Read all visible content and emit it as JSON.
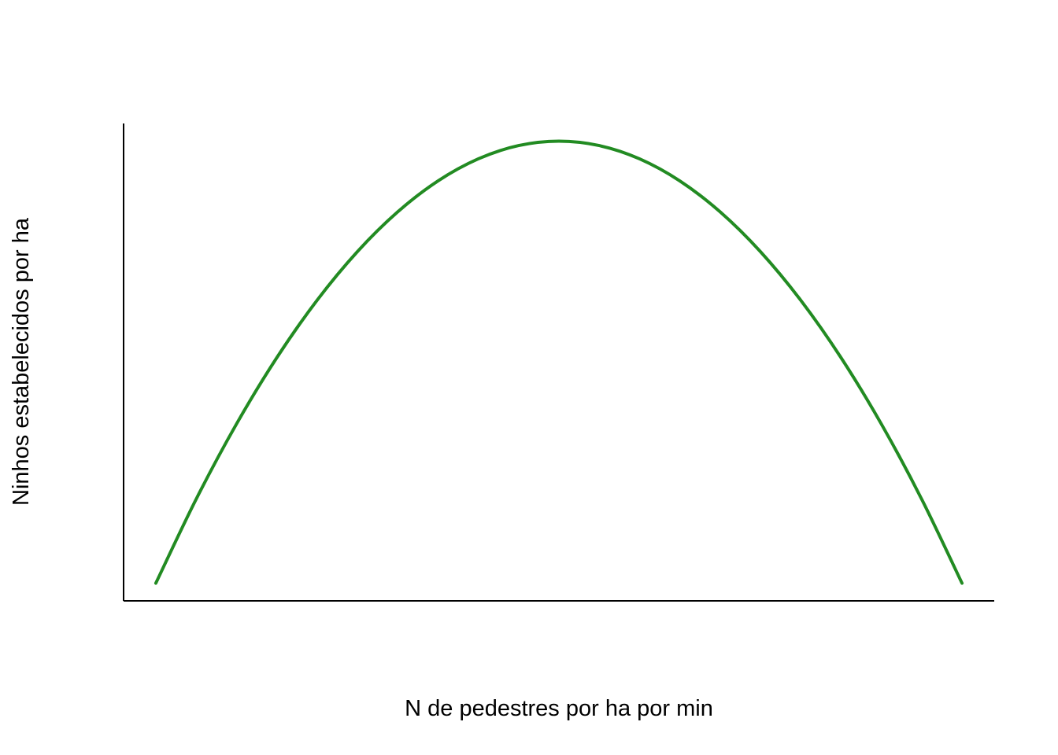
{
  "chart_data": {
    "type": "line",
    "title": "",
    "xlabel": "N de pedestres por ha por min",
    "ylabel": "Ninhos estabelecidos por ha",
    "xlim": [
      -0.04,
      1.04
    ],
    "ylim": [
      -0.04,
      1.04
    ],
    "grid": false,
    "ticks": false,
    "series": [
      {
        "values": [
          {
            "x": 0.0,
            "y": 0.0
          },
          {
            "x": 0.05,
            "y": 0.19
          },
          {
            "x": 0.1,
            "y": 0.36
          },
          {
            "x": 0.15,
            "y": 0.51
          },
          {
            "x": 0.2,
            "y": 0.64
          },
          {
            "x": 0.25,
            "y": 0.75
          },
          {
            "x": 0.3,
            "y": 0.84
          },
          {
            "x": 0.35,
            "y": 0.91
          },
          {
            "x": 0.4,
            "y": 0.96
          },
          {
            "x": 0.45,
            "y": 0.99
          },
          {
            "x": 0.5,
            "y": 1.0
          },
          {
            "x": 0.55,
            "y": 0.99
          },
          {
            "x": 0.6,
            "y": 0.96
          },
          {
            "x": 0.65,
            "y": 0.91
          },
          {
            "x": 0.7,
            "y": 0.84
          },
          {
            "x": 0.75,
            "y": 0.75
          },
          {
            "x": 0.8,
            "y": 0.64
          },
          {
            "x": 0.85,
            "y": 0.51
          },
          {
            "x": 0.9,
            "y": 0.36
          },
          {
            "x": 0.95,
            "y": 0.19
          },
          {
            "x": 1.0,
            "y": 0.0
          }
        ],
        "color": "#228B22"
      }
    ],
    "axis_color": "#000000"
  }
}
